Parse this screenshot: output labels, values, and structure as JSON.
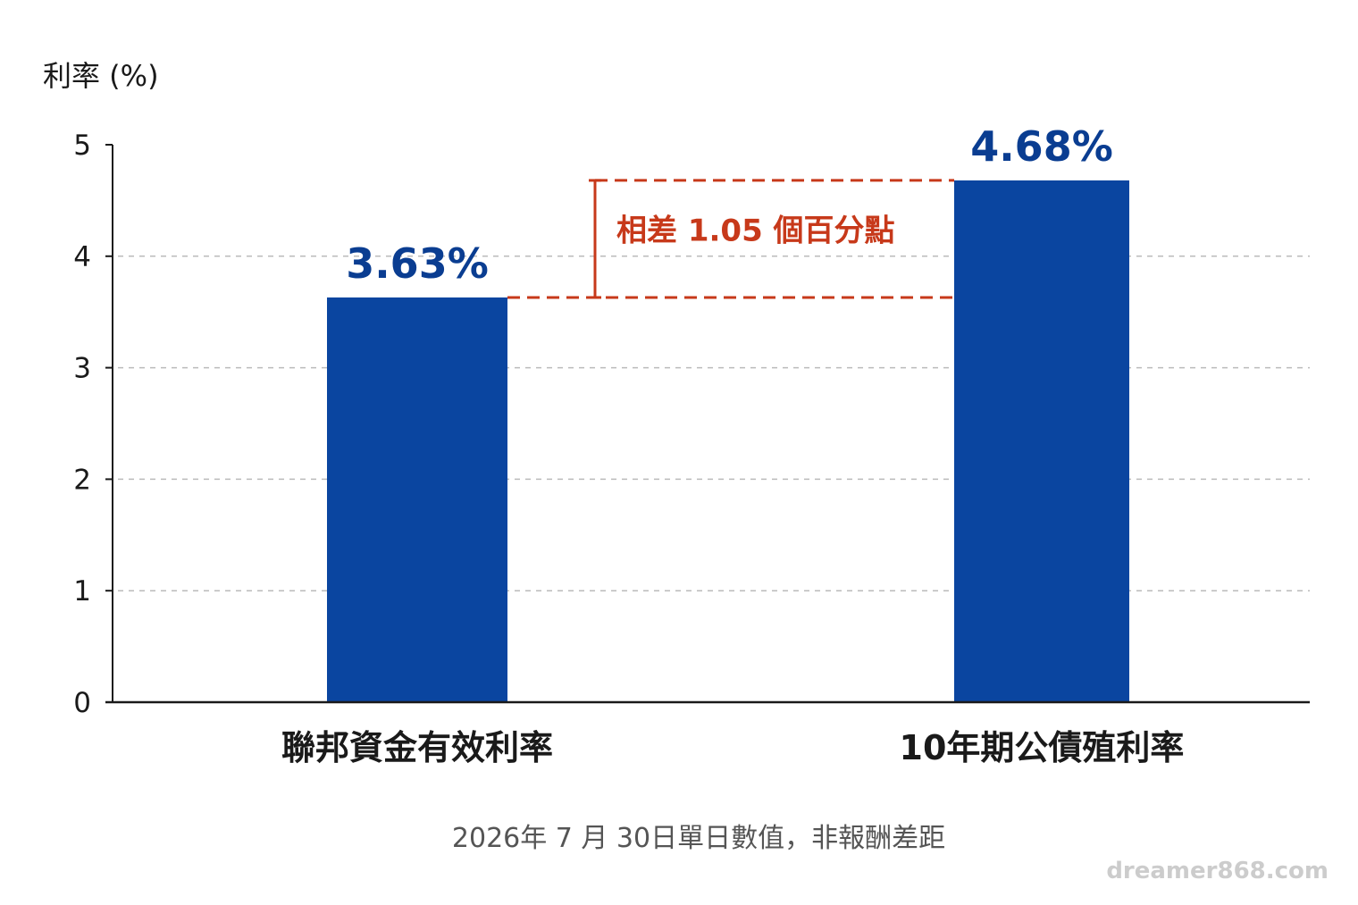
{
  "chart_data": {
    "type": "bar",
    "ylabel": "利率 (%)",
    "ylim": [
      0,
      5
    ],
    "yticks": [
      0,
      1,
      2,
      3,
      4,
      5
    ],
    "grid": true,
    "categories": [
      "聯邦資金有效利率",
      "10年期公債殖利率"
    ],
    "values": [
      3.63,
      4.68
    ],
    "value_labels": [
      "3.63%",
      "4.68%"
    ],
    "annotation": {
      "text": "相差 1.05 個百分點",
      "from": 3.63,
      "to": 4.68
    },
    "footnote": "2026年 7 月 30日單日數值，非報酬差距"
  },
  "watermark": "dreamer868.com",
  "colors": {
    "bar": "#0a45a0",
    "value_label": "#0a3d91",
    "annotation": "#c7391a",
    "grid": "#bbbbbb",
    "axis": "#1a1a1a"
  }
}
